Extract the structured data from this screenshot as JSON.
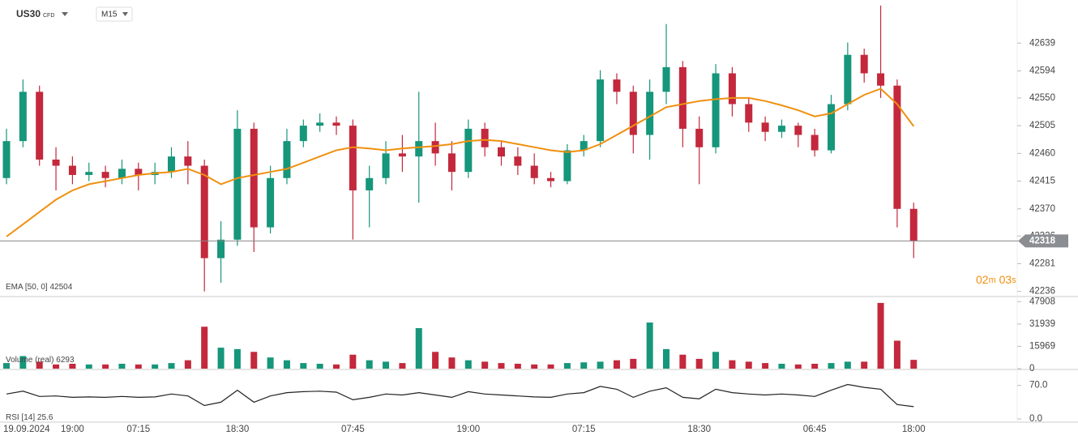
{
  "chart_data": [
    {
      "type": "candlestick",
      "symbol": "US30",
      "instrument_type": "CFD",
      "timeframe": "M15",
      "up_color": "#16967a",
      "down_color": "#c3283c",
      "categories": [
        "19.09.2024",
        null,
        null,
        null,
        "19:00",
        null,
        null,
        null,
        "07:15",
        null,
        null,
        null,
        null,
        null,
        "18:30",
        null,
        null,
        null,
        null,
        null,
        null,
        "07:45",
        null,
        null,
        null,
        null,
        null,
        null,
        "19:00",
        null,
        null,
        null,
        null,
        null,
        null,
        "07:15",
        null,
        null,
        null,
        null,
        null,
        null,
        "18:30",
        null,
        null,
        null,
        null,
        null,
        null,
        "06:45",
        null,
        null,
        null,
        null,
        null,
        "18:00"
      ],
      "candles": [
        [
          42420,
          42500,
          42410,
          42480
        ],
        [
          42480,
          42580,
          42470,
          42560
        ],
        [
          42560,
          42570,
          42440,
          42450
        ],
        [
          42450,
          42470,
          42400,
          42440
        ],
        [
          42440,
          42455,
          42410,
          42425
        ],
        [
          42425,
          42445,
          42415,
          42430
        ],
        [
          42430,
          42440,
          42405,
          42420
        ],
        [
          42420,
          42450,
          42410,
          42435
        ],
        [
          42435,
          42445,
          42400,
          42425
        ],
        [
          42425,
          42445,
          42410,
          42430
        ],
        [
          42430,
          42470,
          42420,
          42455
        ],
        [
          42455,
          42480,
          42410,
          42440
        ],
        [
          42440,
          42450,
          42236,
          42290
        ],
        [
          42290,
          42350,
          42250,
          42320
        ],
        [
          42320,
          42530,
          42310,
          42500
        ],
        [
          42500,
          42510,
          42300,
          42340
        ],
        [
          42340,
          42440,
          42330,
          42420
        ],
        [
          42420,
          42500,
          42410,
          42480
        ],
        [
          42480,
          42515,
          42470,
          42505
        ],
        [
          42505,
          42525,
          42495,
          42510
        ],
        [
          42510,
          42520,
          42490,
          42505
        ],
        [
          42505,
          42515,
          42320,
          42400
        ],
        [
          42400,
          42440,
          42340,
          42420
        ],
        [
          42420,
          42480,
          42410,
          42460
        ],
        [
          42460,
          42490,
          42430,
          42455
        ],
        [
          42455,
          42560,
          42380,
          42480
        ],
        [
          42480,
          42510,
          42440,
          42460
        ],
        [
          42460,
          42480,
          42400,
          42430
        ],
        [
          42430,
          42515,
          42420,
          42500
        ],
        [
          42500,
          42510,
          42455,
          42470
        ],
        [
          42470,
          42480,
          42440,
          42455
        ],
        [
          42455,
          42470,
          42425,
          42440
        ],
        [
          42440,
          42460,
          42410,
          42420
        ],
        [
          42420,
          42430,
          42405,
          42415
        ],
        [
          42415,
          42475,
          42410,
          42465
        ],
        [
          42465,
          42490,
          42455,
          42480
        ],
        [
          42480,
          42595,
          42470,
          42580
        ],
        [
          42580,
          42590,
          42540,
          42560
        ],
        [
          42560,
          42570,
          42460,
          42490
        ],
        [
          42490,
          42580,
          42450,
          42560
        ],
        [
          42560,
          42670,
          42540,
          42600
        ],
        [
          42600,
          42610,
          42470,
          42500
        ],
        [
          42500,
          42520,
          42410,
          42470
        ],
        [
          42470,
          42605,
          42460,
          42590
        ],
        [
          42590,
          42600,
          42520,
          42540
        ],
        [
          42540,
          42550,
          42495,
          42510
        ],
        [
          42510,
          42520,
          42480,
          42495
        ],
        [
          42495,
          42515,
          42485,
          42505
        ],
        [
          42505,
          42510,
          42470,
          42490
        ],
        [
          42490,
          42500,
          42455,
          42465
        ],
        [
          42465,
          42555,
          42460,
          42540
        ],
        [
          42540,
          42640,
          42530,
          42620
        ],
        [
          42620,
          42630,
          42575,
          42590
        ],
        [
          42590,
          42700,
          42550,
          42570
        ],
        [
          42570,
          42580,
          42340,
          42370
        ],
        [
          42370,
          42380,
          42290,
          42318
        ]
      ],
      "ema": {
        "name": "EMA",
        "params": "[50, 0]",
        "value": 42504,
        "color": "#f0900f",
        "values": [
          42325,
          42345,
          42365,
          42385,
          42400,
          42410,
          42415,
          42420,
          42425,
          42428,
          42430,
          42435,
          42425,
          42410,
          42420,
          42425,
          42430,
          42435,
          42445,
          42455,
          42465,
          42470,
          42468,
          42465,
          42468,
          42470,
          42472,
          42475,
          42480,
          42482,
          42480,
          42475,
          42470,
          42465,
          42462,
          42465,
          42475,
          42490,
          42505,
          42520,
          42535,
          42540,
          42545,
          42548,
          42550,
          42550,
          42545,
          42538,
          42530,
          42520,
          42525,
          42540,
          42555,
          42565,
          42540,
          42504
        ]
      },
      "last_price": 42318,
      "countdown": {
        "minutes": "02",
        "minutes_unit": "m",
        "seconds": "03",
        "seconds_unit": "s"
      },
      "ylim": [
        42229,
        42709
      ],
      "yticks": [
        42639,
        42594,
        42550,
        42505,
        42460,
        42415,
        42370,
        42326,
        42281,
        42236
      ]
    },
    {
      "type": "bar",
      "name": "Volume",
      "params": "(real)",
      "value": 6293,
      "values": [
        4000,
        9000,
        5000,
        3000,
        3500,
        3000,
        3000,
        3500,
        3000,
        3000,
        4000,
        6000,
        30000,
        15000,
        14000,
        12000,
        8000,
        6000,
        4000,
        3500,
        3000,
        10000,
        6000,
        5000,
        4000,
        29000,
        12000,
        8000,
        6000,
        5000,
        4000,
        3500,
        3000,
        3000,
        4000,
        4500,
        5000,
        6000,
        7000,
        33000,
        14000,
        10000,
        7000,
        12000,
        6000,
        5000,
        4000,
        3500,
        3000,
        3500,
        4000,
        5000,
        5000,
        47000,
        20000,
        6293
      ],
      "ylim": [
        0,
        51000
      ],
      "yticks": [
        47908,
        31939,
        15969,
        0
      ]
    },
    {
      "type": "line",
      "name": "RSI",
      "params": "[14]",
      "value": 25.6,
      "color": "#222222",
      "values": [
        52,
        58,
        47,
        48,
        45,
        46,
        45,
        47,
        45,
        46,
        52,
        48,
        28,
        35,
        60,
        35,
        48,
        55,
        57,
        58,
        56,
        40,
        45,
        52,
        50,
        55,
        50,
        45,
        57,
        52,
        50,
        48,
        46,
        45,
        52,
        55,
        68,
        62,
        45,
        58,
        65,
        45,
        42,
        62,
        55,
        52,
        50,
        52,
        50,
        47,
        60,
        72,
        66,
        62,
        30,
        25.6
      ],
      "ylim": [
        0,
        100
      ],
      "yticks": [
        {
          "value": 70,
          "label": "70.0"
        },
        {
          "value": 0,
          "label": "0.0"
        }
      ]
    }
  ]
}
